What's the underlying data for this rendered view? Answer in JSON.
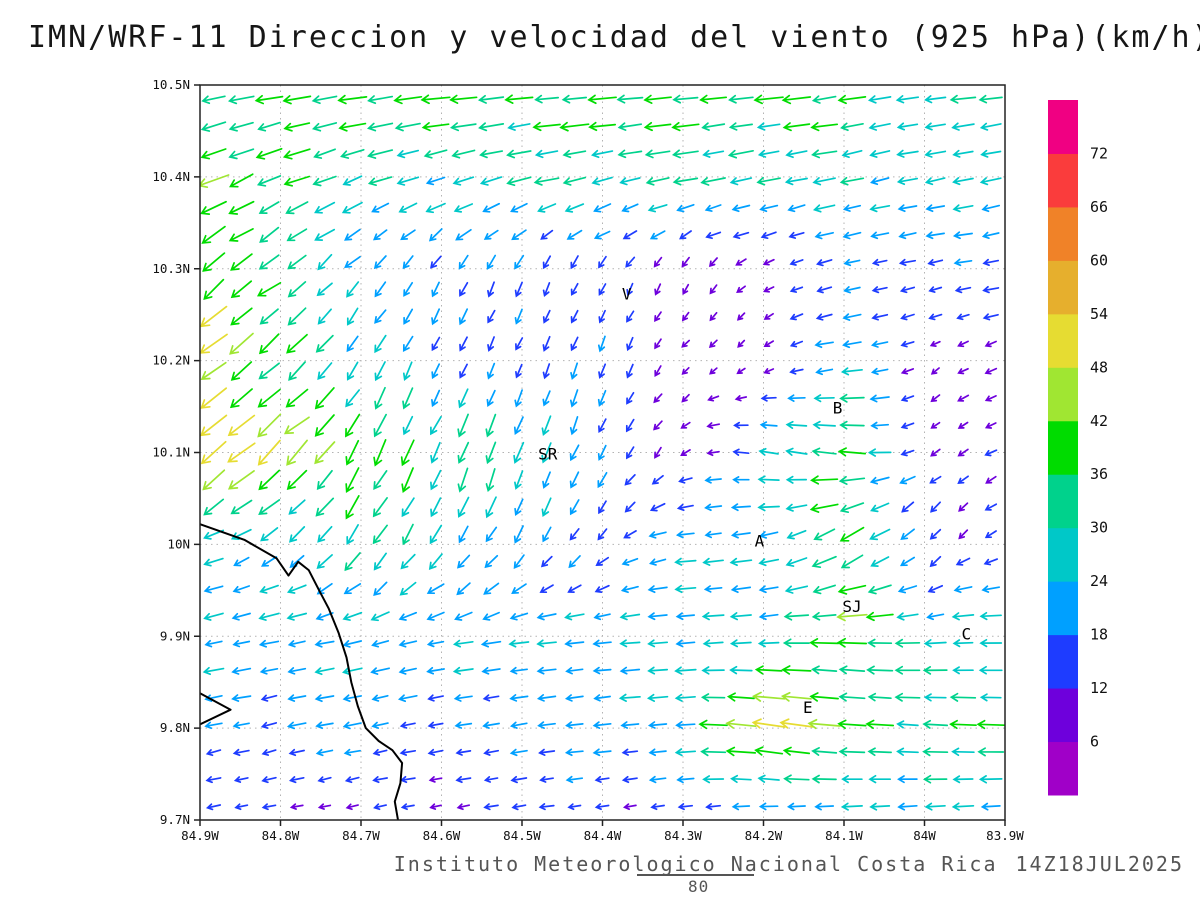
{
  "title": "IMN/WRF-11 Direccion y velocidad del viento (925 hPa)(km/h)",
  "footer": {
    "credit": "Instituto Meteorologico Nacional Costa Rica",
    "timestamp": "14Z18JUL2025",
    "stray_label": "80"
  },
  "chart_data": {
    "type": "vector-field",
    "title": "IMN/WRF-11 Direccion y velocidad del viento (925 hPa)(km/h)",
    "variable": "wind direction and speed",
    "level": "925 hPa",
    "units": "km/h",
    "grid_on": true,
    "x_axis": {
      "label": "longitude",
      "ticks": [
        "84.9W",
        "84.8W",
        "84.7W",
        "84.6W",
        "84.5W",
        "84.4W",
        "84.3W",
        "84.2W",
        "84.1W",
        "84W",
        "83.9W"
      ],
      "range_deg_west": [
        84.9,
        83.9
      ]
    },
    "y_axis": {
      "label": "latitude",
      "ticks": [
        "9.7N",
        "9.8N",
        "9.9N",
        "10N",
        "10.1N",
        "10.2N",
        "10.3N",
        "10.4N",
        "10.5N"
      ],
      "range_deg_north": [
        9.7,
        10.5
      ]
    },
    "legend": {
      "position": "right",
      "levels": [
        6,
        12,
        18,
        24,
        30,
        36,
        42,
        48,
        54,
        60,
        66,
        72
      ],
      "colors": [
        "#a000c8",
        "#6e00dc",
        "#1e3cff",
        "#00a0ff",
        "#00c8c8",
        "#00d28c",
        "#00dc00",
        "#a0e632",
        "#e6dc32",
        "#e6af2d",
        "#f08228",
        "#fa3c3c",
        "#f00082"
      ]
    },
    "wind_grid": {
      "lons_deg_west": [
        84.9,
        84.8,
        84.7,
        84.6,
        84.5,
        84.4,
        84.3,
        84.2,
        84.1,
        84.0,
        83.9
      ],
      "lats_deg_north": [
        10.5,
        10.4,
        10.3,
        10.2,
        10.1,
        10.0,
        9.9,
        9.8,
        9.7
      ],
      "u_kmh": [
        [
          -38,
          -37,
          -36,
          -38,
          -40,
          -40,
          -38,
          -38,
          -36,
          -33,
          -34
        ],
        [
          -40,
          -32,
          -28,
          -28,
          -29,
          -30,
          -30,
          -28,
          -27,
          -26,
          -28
        ],
        [
          -34,
          -26,
          -14,
          -9,
          -7,
          -6,
          -5,
          -7,
          -18,
          -15,
          -20
        ],
        [
          -38,
          -30,
          -13,
          -8,
          -6,
          -7,
          -5,
          -5,
          -24,
          -6,
          -10
        ],
        [
          -43,
          -37,
          -17,
          -13,
          -10,
          -9,
          -6,
          -25,
          -42,
          -8,
          -10
        ],
        [
          -21,
          -19,
          -17,
          -14,
          -9,
          -9,
          -23,
          -23,
          -33,
          -10,
          -9
        ],
        [
          -23,
          -23,
          -22,
          -22,
          -23,
          -24,
          -25,
          -27,
          -43,
          -26,
          -30
        ],
        [
          -21,
          -19,
          -18,
          -18,
          -19,
          -21,
          -24,
          -55,
          -36,
          -31,
          -33
        ],
        [
          -11,
          -10,
          -10,
          -11,
          -13,
          -12,
          -13,
          -15,
          -21,
          -25,
          -27
        ]
      ],
      "v_kmh": [
        [
          -5,
          -6,
          -5,
          -4,
          -3,
          -3,
          -3,
          -4,
          -5,
          -4,
          -4
        ],
        [
          -18,
          -12,
          -9,
          -8,
          -7,
          -6,
          -6,
          -6,
          -6,
          -5,
          -5
        ],
        [
          -26,
          -20,
          -16,
          -15,
          -14,
          -12,
          -8,
          -5,
          -4,
          -3,
          -3
        ],
        [
          -30,
          -25,
          -20,
          -17,
          -15,
          -17,
          -5,
          -4,
          -4,
          -4,
          -4
        ],
        [
          -34,
          -31,
          -33,
          -31,
          -29,
          -18,
          -5,
          4,
          4,
          -6,
          -5
        ],
        [
          -7,
          -14,
          -25,
          -22,
          -18,
          -11,
          -2,
          -4,
          -20,
          -12,
          -5
        ],
        [
          -5,
          -4,
          -5,
          -4,
          -3,
          -2,
          -2,
          -2,
          2,
          -2,
          0
        ],
        [
          -4,
          -4,
          -4,
          -3,
          -3,
          -2,
          -2,
          8,
          3,
          2,
          1
        ],
        [
          -3,
          -2,
          -2,
          -2,
          -2,
          -2,
          -2,
          -2,
          -2,
          -2,
          -2
        ]
      ]
    },
    "arrow_density": {
      "cols": 29,
      "rows": 27
    },
    "cities": [
      {
        "label": "V",
        "lon_w": 84.37,
        "lat_n": 10.272
      },
      {
        "label": "SR",
        "lon_w": 84.468,
        "lat_n": 10.098
      },
      {
        "label": "B",
        "lon_w": 84.108,
        "lat_n": 10.148
      },
      {
        "label": "A",
        "lon_w": 84.205,
        "lat_n": 10.003
      },
      {
        "label": "SJ",
        "lon_w": 84.09,
        "lat_n": 9.932
      },
      {
        "label": "C",
        "lon_w": 83.948,
        "lat_n": 9.902
      },
      {
        "label": "E",
        "lon_w": 84.145,
        "lat_n": 9.822
      }
    ],
    "coastline_deg": [
      [
        84.9,
        10.022
      ],
      [
        84.845,
        10.005
      ],
      [
        84.805,
        9.985
      ],
      [
        84.79,
        9.966
      ],
      [
        84.778,
        9.981
      ],
      [
        84.765,
        9.972
      ],
      [
        84.752,
        9.95
      ],
      [
        84.74,
        9.93
      ],
      [
        84.728,
        9.904
      ],
      [
        84.718,
        9.877
      ],
      [
        84.712,
        9.85
      ],
      [
        84.704,
        9.824
      ],
      [
        84.694,
        9.8
      ],
      [
        84.678,
        9.786
      ],
      [
        84.661,
        9.776
      ],
      [
        84.649,
        9.762
      ],
      [
        84.651,
        9.74
      ],
      [
        84.658,
        9.72
      ],
      [
        84.654,
        9.7
      ]
    ],
    "coast_spit_deg": [
      [
        84.9,
        9.838
      ],
      [
        84.862,
        9.82
      ],
      [
        84.9,
        9.804
      ]
    ]
  }
}
